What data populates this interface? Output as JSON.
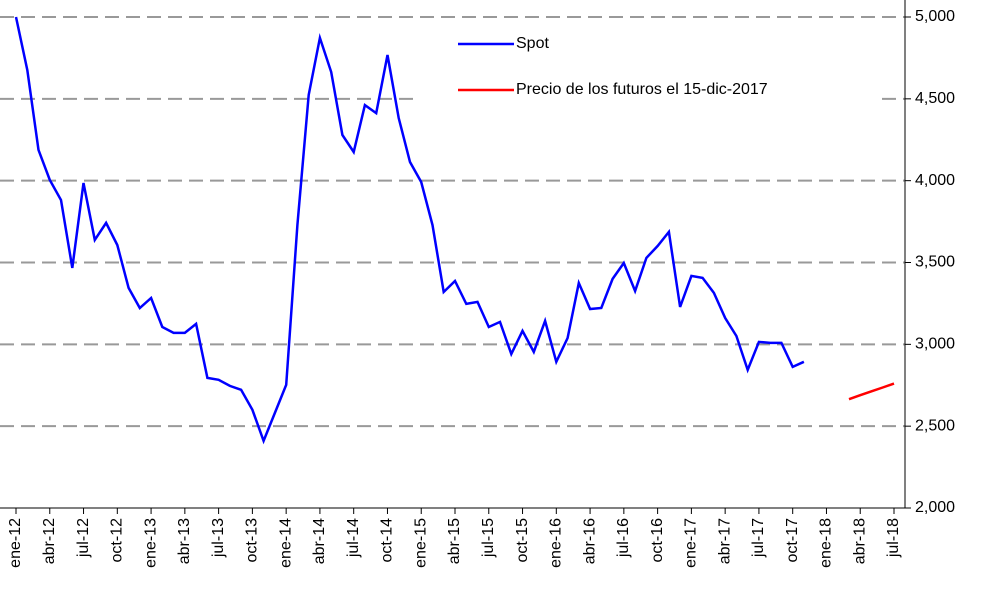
{
  "chart_data": {
    "type": "line",
    "categories": [
      "ene-12",
      null,
      null,
      "abr-12",
      null,
      null,
      "jul-12",
      null,
      null,
      "oct-12",
      null,
      null,
      "ene-13",
      null,
      null,
      "abr-13",
      null,
      null,
      "jul-13",
      null,
      null,
      "oct-13",
      null,
      null,
      "ene-14",
      null,
      null,
      "abr-14",
      null,
      null,
      "jul-14",
      null,
      null,
      "oct-14",
      null,
      null,
      "ene-15",
      null,
      null,
      "abr-15",
      null,
      null,
      "jul-15",
      null,
      null,
      "oct-15",
      null,
      null,
      "ene-16",
      null,
      null,
      "abr-16",
      null,
      null,
      "jul-16",
      null,
      null,
      "oct-16",
      null,
      null,
      "ene-17",
      null,
      null,
      "abr-17",
      null,
      null,
      "jul-17",
      null,
      null,
      "oct-17",
      null,
      null,
      "ene-18",
      null,
      null,
      "abr-18",
      null,
      null,
      "jul-18"
    ],
    "series": [
      {
        "name": "Spot",
        "color": "#0000ff",
        "values": [
          5000,
          4676,
          4188,
          4004,
          3882,
          3467,
          3986,
          3638,
          3742,
          3607,
          3345,
          3222,
          3283,
          3106,
          3070,
          3070,
          3125,
          2795,
          2783,
          2746,
          2722,
          2600,
          2410,
          2581,
          2752,
          3729,
          4524,
          4872,
          4664,
          4279,
          4175,
          4462,
          4413,
          4768,
          4383,
          4114,
          3992,
          3729,
          3320,
          3387,
          3247,
          3259,
          3106,
          3137,
          2941,
          3082,
          2954,
          3143,
          2893,
          3039,
          3375,
          3216,
          3222,
          3400,
          3497,
          3326,
          3528,
          3601,
          3687,
          3228,
          3418,
          3406,
          3314,
          3161,
          3051,
          2844,
          3015,
          3009,
          3009,
          2862,
          2893,
          null,
          null,
          null,
          null,
          null,
          null,
          null,
          null
        ]
      },
      {
        "name": "Precio de los futuros el 15-dic-2017",
        "color": "#ff0000",
        "values": [
          null,
          null,
          null,
          null,
          null,
          null,
          null,
          null,
          null,
          null,
          null,
          null,
          null,
          null,
          null,
          null,
          null,
          null,
          null,
          null,
          null,
          null,
          null,
          null,
          null,
          null,
          null,
          null,
          null,
          null,
          null,
          null,
          null,
          null,
          null,
          null,
          null,
          null,
          null,
          null,
          null,
          null,
          null,
          null,
          null,
          null,
          null,
          null,
          null,
          null,
          null,
          null,
          null,
          null,
          null,
          null,
          null,
          null,
          null,
          null,
          null,
          null,
          null,
          null,
          null,
          null,
          null,
          null,
          null,
          null,
          null,
          null,
          null,
          null,
          2665,
          2689,
          2713,
          2736,
          2760
        ]
      }
    ],
    "ylim": [
      2000,
      5000
    ],
    "yticks": [
      {
        "value": 2000,
        "label": "2,000"
      },
      {
        "value": 2500,
        "label": "2,500"
      },
      {
        "value": 3000,
        "label": "3,000"
      },
      {
        "value": 3500,
        "label": "3,500"
      },
      {
        "value": 4000,
        "label": "4,000"
      },
      {
        "value": 4500,
        "label": "4,500"
      },
      {
        "value": 5000,
        "label": "5,000"
      }
    ],
    "grid": true,
    "legend": "top-right"
  }
}
